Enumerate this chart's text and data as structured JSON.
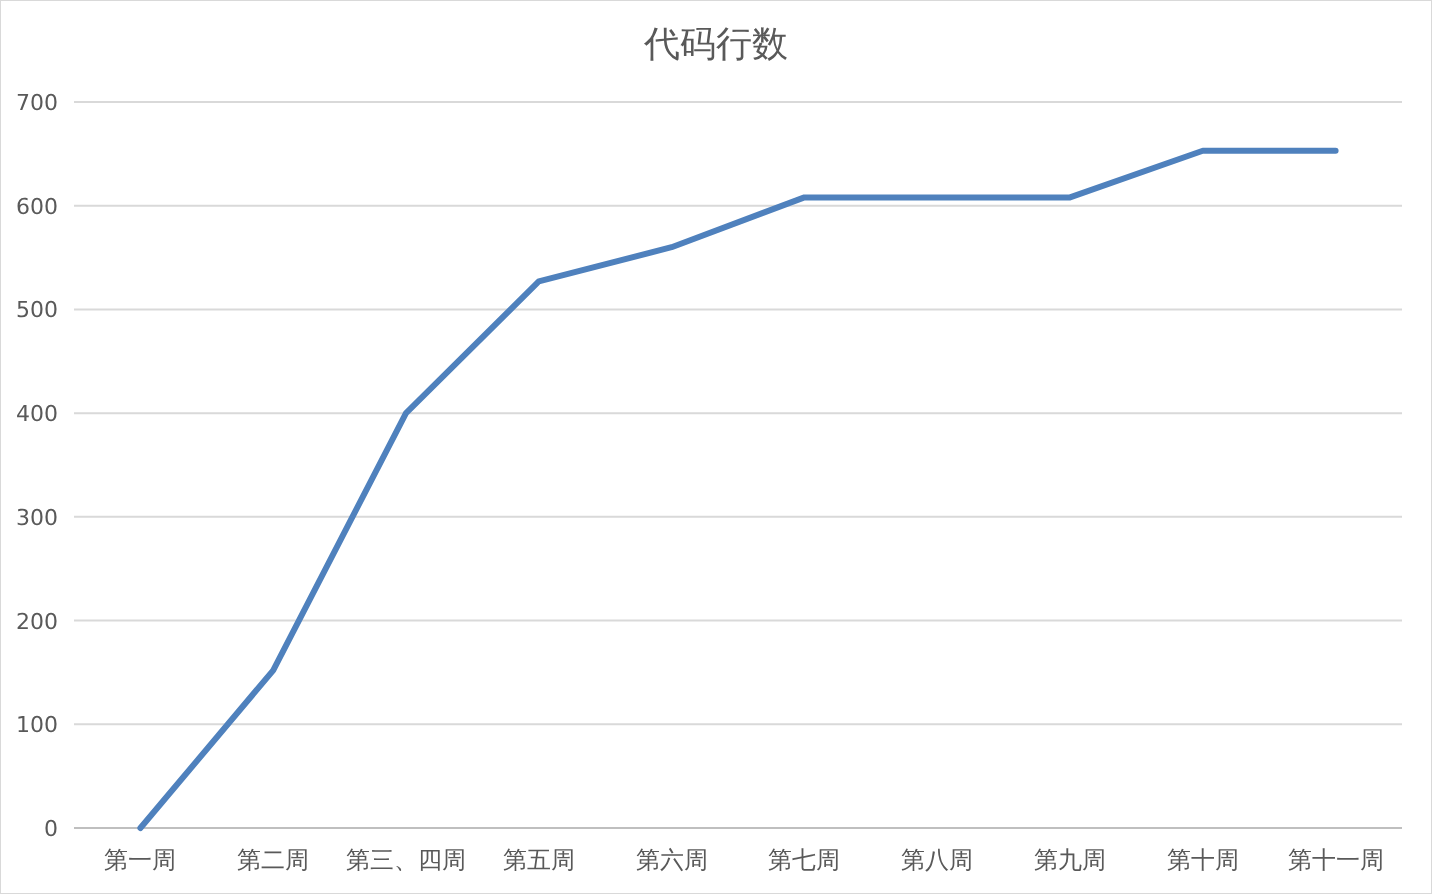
{
  "chart_data": {
    "type": "line",
    "title": "代码行数",
    "categories": [
      "第一周",
      "第二周",
      "第三、四周",
      "第五周",
      "第六周",
      "第七周",
      "第八周",
      "第九周",
      "第十周",
      "第十一周"
    ],
    "series": [
      {
        "color": "#4f81bd",
        "values": [
          0,
          152,
          400,
          527,
          560,
          608,
          608,
          608,
          653,
          653
        ]
      }
    ],
    "ylim": [
      0,
      700
    ],
    "yticks": [
      0,
      100,
      200,
      300,
      400,
      500,
      600,
      700
    ],
    "grid": "y"
  }
}
